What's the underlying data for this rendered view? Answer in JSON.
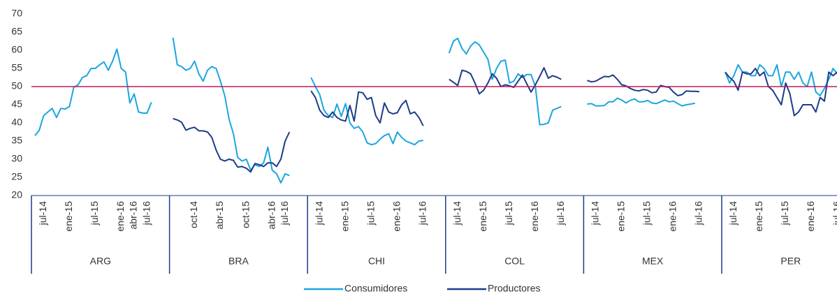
{
  "chart_data": {
    "type": "line",
    "ylim": [
      20,
      70
    ],
    "yticks": [
      20,
      25,
      30,
      35,
      40,
      45,
      50,
      55,
      60,
      65,
      70
    ],
    "grid": false,
    "reference_line": {
      "value": 50,
      "color": "#c0185a"
    },
    "legend": "bottom",
    "series": [
      {
        "name": "Consumidores",
        "color": "#1ba6e0"
      },
      {
        "name": "Productores",
        "color": "#1c3b8a"
      }
    ],
    "groups": [
      {
        "label": "ARG",
        "categories": [
          null,
          null,
          "jul-14",
          null,
          null,
          null,
          null,
          null,
          "ene-15",
          null,
          null,
          null,
          null,
          null,
          "jul-15",
          null,
          null,
          null,
          null,
          null,
          "ene-16",
          null,
          null,
          "abr-16",
          null,
          null,
          "jul-16",
          null
        ],
        "series": [
          {
            "values": [
              36.5,
              38,
              42,
              43,
              44,
              41.5,
              44,
              43.8,
              44.5,
              49.8,
              50.5,
              52.5,
              53,
              55,
              55,
              56,
              56.8,
              54.5,
              57,
              60.3,
              55,
              54,
              45.5,
              48,
              43,
              42.7,
              42.7,
              45.7
            ]
          },
          {
            "values": [
              null,
              null,
              null,
              null,
              null,
              null,
              null,
              null,
              null,
              null,
              null,
              null,
              null,
              null,
              null,
              null,
              null,
              null,
              null,
              null,
              null,
              null,
              null,
              null,
              null,
              null,
              null,
              null
            ]
          }
        ]
      },
      {
        "label": "BRA",
        "categories": [
          null,
          null,
          null,
          null,
          null,
          "oct-14",
          null,
          null,
          null,
          null,
          null,
          "abr-15",
          null,
          null,
          null,
          null,
          null,
          "oct-15",
          null,
          null,
          null,
          null,
          null,
          "abr-16",
          null,
          null,
          "jul-16",
          null
        ],
        "series": [
          {
            "values": [
              63.5,
              56,
              55.5,
              54.5,
              55,
              57,
              53.5,
              51.5,
              54.5,
              55.5,
              55,
              51.5,
              47.5,
              41,
              37,
              30.5,
              29.5,
              30,
              27,
              28.5,
              28,
              29,
              33.3,
              27,
              26,
              23.5,
              26,
              25.5
            ]
          },
          {
            "values": [
              41.2,
              40.8,
              40.2,
              38,
              38.5,
              38.8,
              37.8,
              37.8,
              37.5,
              36,
              32.5,
              30,
              29.5,
              30,
              29.7,
              27.8,
              28,
              27.5,
              26.5,
              28.8,
              28.5,
              28,
              29,
              29,
              28,
              30,
              35,
              37.5
            ]
          }
        ]
      },
      {
        "label": "CHI",
        "categories": [
          null,
          null,
          "jul-14",
          null,
          null,
          null,
          null,
          null,
          "ene-15",
          null,
          null,
          null,
          null,
          null,
          "jul-15",
          null,
          null,
          null,
          null,
          null,
          "ene-16",
          null,
          null,
          null,
          null,
          null,
          "jul-16"
        ],
        "series": [
          {
            "values": [
              52.5,
              50,
              47.8,
              43.5,
              42,
              41.5,
              45.2,
              41.8,
              45.3,
              40,
              38.5,
              39,
              37.5,
              34.5,
              34,
              34.3,
              35.5,
              36.5,
              37,
              34.3,
              37.5,
              36,
              35,
              34.5,
              34,
              35,
              35.2
            ]
          },
          {
            "values": [
              48.8,
              47,
              43.5,
              42,
              41.5,
              43,
              41.5,
              40.8,
              40.5,
              44.8,
              40.5,
              48.5,
              48.3,
              46.5,
              47,
              42,
              40,
              45.5,
              43,
              42.5,
              42.8,
              45,
              46.2,
              42.5,
              43,
              41.5,
              39.2
            ]
          }
        ]
      },
      {
        "label": "COL",
        "categories": [
          null,
          null,
          "jul-14",
          null,
          null,
          null,
          null,
          null,
          "ene-15",
          null,
          null,
          null,
          null,
          null,
          "jul-15",
          null,
          null,
          null,
          null,
          null,
          "ene-16",
          null,
          null,
          null,
          null,
          null,
          "jul-16"
        ],
        "series": [
          {
            "values": [
              59.2,
              62.5,
              63.3,
              60.5,
              59,
              61.2,
              62.3,
              61.5,
              59.5,
              57.5,
              52,
              55,
              57,
              57.3,
              51,
              51.5,
              53.5,
              52.5,
              53.3,
              53.3,
              50,
              39.5,
              39.6,
              40,
              43.5,
              44,
              44.5
            ]
          },
          {
            "values": [
              52,
              51.2,
              50.3,
              54.5,
              54.2,
              53.5,
              51,
              48,
              49,
              51,
              53.5,
              52.3,
              50,
              50.5,
              50.2,
              49.8,
              51.5,
              53.2,
              50.8,
              48.5,
              50.5,
              52.8,
              55.2,
              52.3,
              53,
              52.6,
              52
            ]
          }
        ]
      },
      {
        "label": "MEX",
        "categories": [
          null,
          null,
          "jul-14",
          null,
          null,
          null,
          null,
          null,
          "ene-15",
          null,
          null,
          null,
          null,
          null,
          "jul-15",
          null,
          null,
          null,
          null,
          null,
          "ene-16",
          null,
          null,
          null,
          null,
          null,
          "jul-16"
        ],
        "series": [
          {
            "values": [
              45.2,
              45.3,
              44.7,
              44.7,
              44.8,
              45.8,
              45.8,
              46.8,
              46.3,
              45.5,
              46.2,
              46.6,
              45.8,
              45.8,
              46.2,
              45.5,
              45.3,
              45.8,
              46.3,
              45.8,
              46,
              45.3,
              44.7,
              45,
              45.2,
              45.4,
              null
            ]
          },
          {
            "values": [
              51.7,
              51.3,
              51.5,
              52.2,
              52.8,
              52.7,
              53.2,
              52,
              50.5,
              50.2,
              49.5,
              49,
              48.8,
              49.2,
              49,
              48.3,
              48.5,
              50.3,
              50,
              49.8,
              48.5,
              47.5,
              47.8,
              48.8,
              48.7,
              48.7,
              48.6
            ]
          }
        ]
      },
      {
        "label": "PER",
        "categories": [
          null,
          null,
          "jul-14",
          null,
          null,
          null,
          null,
          null,
          "ene-15",
          null,
          null,
          null,
          null,
          null,
          "jul-15",
          null,
          null,
          null,
          null,
          null,
          "ene-16",
          null,
          null,
          null,
          null,
          null,
          "jul-16"
        ],
        "series": [
          {
            "values": [
              54,
              51,
              53,
              56,
              54,
              54,
              53,
              53,
              56,
              55,
              53,
              53,
              56,
              50,
              54,
              54,
              52,
              54,
              51,
              50,
              54,
              48.5,
              47.5,
              49.5,
              52,
              55,
              53.5
            ]
          },
          {
            "values": [
              54,
              52.5,
              51.5,
              49,
              54,
              53.5,
              53.5,
              55,
              53,
              54,
              50,
              49,
              47,
              45,
              51,
              48,
              42,
              43,
              45,
              45,
              45,
              43,
              47,
              46,
              54,
              53,
              54
            ]
          }
        ]
      }
    ]
  }
}
